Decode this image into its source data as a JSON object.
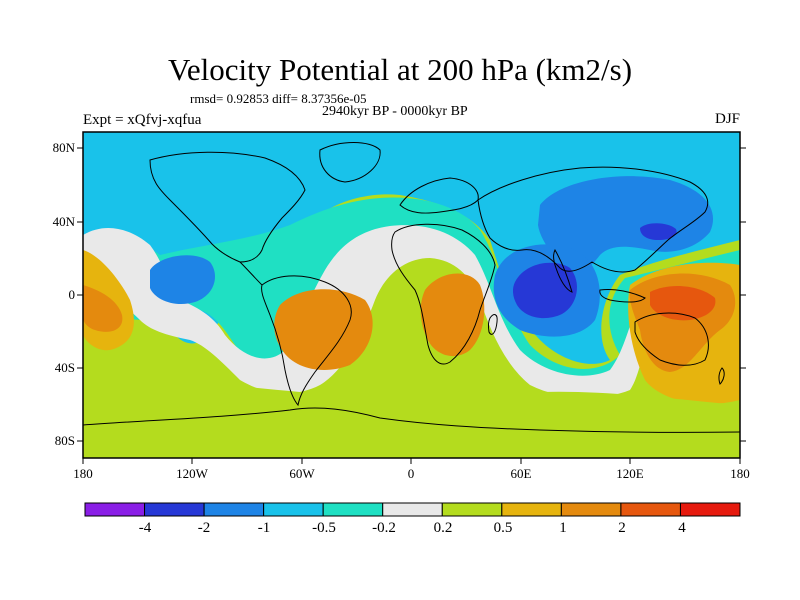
{
  "title": "Velocity Potential at 200 hPa (km2/s)",
  "stats_text": "rmsd= 0.92853 diff= 8.37356e-05",
  "experiment": "Expt = xQfvj-xqfua",
  "period": "2940kyr BP - 0000kyr BP",
  "season": "DJF",
  "axes": {
    "lat_labels": [
      "80N",
      "40N",
      "0",
      "40S",
      "80S"
    ],
    "lon_labels": [
      "180",
      "120W",
      "60W",
      "0",
      "60E",
      "120E",
      "180"
    ]
  },
  "colorbar": {
    "labels": [
      "-4",
      "-2",
      "-1",
      "-0.5",
      "-0.2",
      "0.2",
      "0.5",
      "1",
      "2",
      "4"
    ],
    "colors": [
      "#8a1ee6",
      "#2638d6",
      "#1e84e6",
      "#19c2ea",
      "#1fe0c3",
      "#e9e9e9",
      "#b4dc1e",
      "#e6b40e",
      "#e48a0e",
      "#e6570e",
      "#e61a0e"
    ]
  },
  "map_colors": {
    "ocean_high": "#19c2ea",
    "mid_blue": "#1e84e6",
    "deep_blue": "#2638d6",
    "cyan": "#1fe0c3",
    "neutral": "#e9e9e9",
    "green": "#b4dc1e",
    "gold": "#e6b40e",
    "orange": "#e48a0e",
    "red_orange": "#e6570e"
  }
}
